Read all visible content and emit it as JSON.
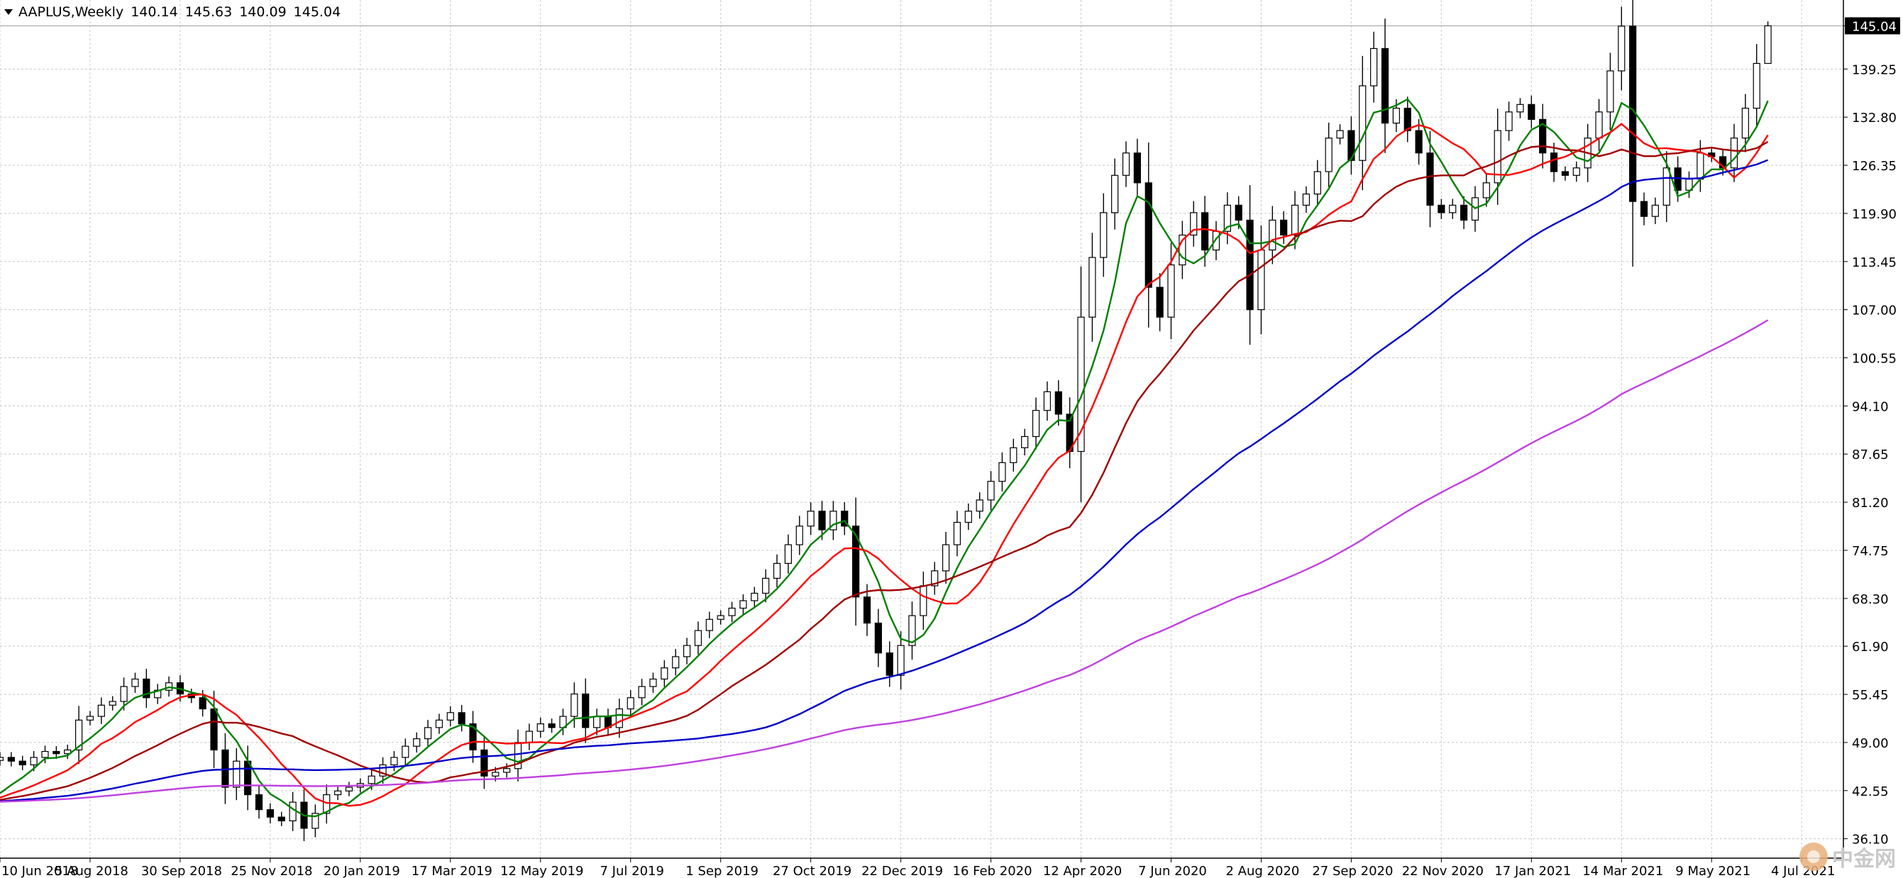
{
  "header": {
    "symbol": "AAPLUS,Weekly",
    "open": "140.14",
    "high": "145.63",
    "low": "140.09",
    "close": "145.04"
  },
  "watermark": {
    "text": "中金网"
  },
  "colors": {
    "background": "#ffffff",
    "grid": "#c8c8c8",
    "bull_body": "#ffffff",
    "bear_body": "#000000",
    "candle_outline": "#000000",
    "last_price_box": "#000000",
    "last_price_text": "#ffffff"
  },
  "chart_data": {
    "type": "candlestick",
    "title": "AAPLUS,Weekly",
    "ylim": [
      33.5,
      148.5
    ],
    "price_ticks": [
      "145.04",
      "139.25",
      "132.80",
      "126.35",
      "119.90",
      "113.45",
      "107.00",
      "100.55",
      "94.10",
      "87.65",
      "81.20",
      "74.75",
      "68.30",
      "61.90",
      "55.45",
      "49.00",
      "42.55",
      "36.10"
    ],
    "date_ticks": [
      {
        "label": "10 Jun 2018",
        "index": 0
      },
      {
        "label": "5 Aug 2018",
        "index": 8
      },
      {
        "label": "30 Sep 2018",
        "index": 16
      },
      {
        "label": "25 Nov 2018",
        "index": 24
      },
      {
        "label": "20 Jan 2019",
        "index": 32
      },
      {
        "label": "17 Mar 2019",
        "index": 40
      },
      {
        "label": "12 May 2019",
        "index": 48
      },
      {
        "label": "7 Jul 2019",
        "index": 56
      },
      {
        "label": "1 Sep 2019",
        "index": 64
      },
      {
        "label": "27 Oct 2019",
        "index": 72
      },
      {
        "label": "22 Dec 2019",
        "index": 80
      },
      {
        "label": "16 Feb 2020",
        "index": 88
      },
      {
        "label": "12 Apr 2020",
        "index": 96
      },
      {
        "label": "7 Jun 2020",
        "index": 104
      },
      {
        "label": "2 Aug 2020",
        "index": 112
      },
      {
        "label": "27 Sep 2020",
        "index": 120
      },
      {
        "label": "22 Nov 2020",
        "index": 128
      },
      {
        "label": "17 Jan 2021",
        "index": 136
      },
      {
        "label": "14 Mar 2021",
        "index": 144
      },
      {
        "label": "9 May 2021",
        "index": 152
      },
      {
        "label": "4 Jul 2021",
        "index": 160
      }
    ],
    "last_price": 145.04,
    "closes": [
      47.0,
      46.5,
      46.0,
      47.0,
      47.8,
      47.5,
      48.0,
      52.0,
      52.5,
      54.0,
      54.5,
      56.5,
      57.5,
      55.0,
      56.0,
      57.0,
      55.5,
      55.0,
      53.5,
      48.0,
      43.0,
      46.5,
      42.0,
      40.0,
      39.0,
      38.5,
      41.0,
      37.5,
      39.5,
      42.0,
      42.5,
      43.0,
      43.5,
      44.5,
      46.0,
      47.0,
      48.5,
      49.5,
      51.0,
      52.0,
      53.0,
      51.5,
      48.0,
      44.5,
      45.0,
      45.5,
      49.0,
      50.5,
      51.5,
      51.0,
      52.5,
      55.5,
      51.0,
      52.5,
      51.0,
      53.5,
      55.0,
      56.5,
      57.5,
      59.0,
      60.5,
      62.0,
      64.0,
      65.5,
      66.0,
      67.0,
      68.0,
      69.0,
      71.0,
      73.0,
      75.5,
      78.0,
      80.0,
      77.5,
      80.0,
      78.0,
      68.5,
      65.0,
      61.0,
      58.0,
      62.0,
      66.0,
      70.0,
      72.0,
      75.5,
      78.5,
      80.0,
      81.5,
      84.0,
      86.5,
      88.5,
      90.0,
      93.5,
      96.0,
      93.0,
      88.0,
      106.0,
      114.0,
      120.0,
      125.0,
      128.0,
      124.0,
      110.0,
      106.0,
      113.0,
      117.0,
      120.0,
      115.0,
      117.5,
      121.0,
      119.0,
      107.0,
      115.0,
      119.0,
      117.0,
      121.0,
      122.5,
      125.5,
      130.0,
      131.0,
      127.0,
      137.0,
      142.0,
      132.0,
      134.0,
      131.0,
      128.0,
      121.0,
      120.0,
      121.0,
      119.0,
      122.0,
      124.0,
      131.0,
      133.5,
      134.5,
      132.5,
      128.0,
      125.5,
      125.0,
      126.0,
      130.0,
      133.5,
      139.0,
      145.0,
      121.5,
      119.5,
      121.0,
      126.0,
      123.0,
      124.5,
      128.0,
      127.5,
      126.0,
      130.0,
      134.0,
      140.0,
      145.04
    ],
    "series": [
      {
        "color": "#008000",
        "ma_period": 5
      },
      {
        "color": "#ff0000",
        "ma_period": 10
      },
      {
        "color": "#a00000",
        "ma_period": 20
      },
      {
        "color": "#0000c8",
        "ma_period": 50
      },
      {
        "color": "#c040e0",
        "ma_period": 100
      }
    ]
  }
}
